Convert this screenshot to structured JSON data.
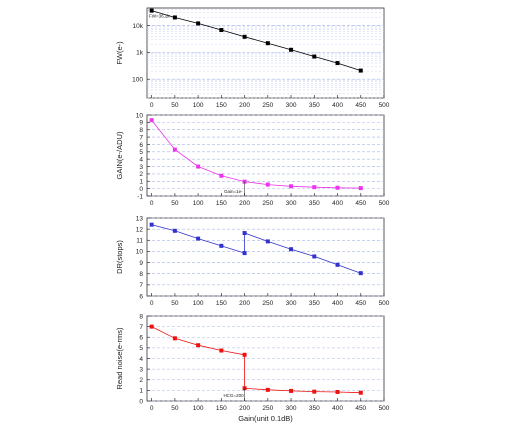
{
  "chart_data": [
    {
      "type": "line",
      "ylabel": "FW(e-)",
      "xlabel": "",
      "x": [
        0,
        50,
        100,
        150,
        200,
        250,
        300,
        350,
        400,
        450
      ],
      "series": [
        {
          "values": [
            36000,
            20000,
            12000,
            6800,
            3800,
            2200,
            1250,
            700,
            400,
            210
          ],
          "color": "#000000"
        }
      ],
      "yscale": "log",
      "ylim": [
        20,
        45000
      ],
      "yticks": [
        100,
        1000,
        10000
      ],
      "ytick_labels": [
        "100",
        "1k",
        "10k"
      ],
      "xlim": [
        -10,
        500
      ],
      "xticks": [
        0,
        50,
        100,
        150,
        200,
        250,
        300,
        350,
        400,
        450,
        500
      ],
      "grid": true,
      "annotations": [
        {
          "text": "FW=36.2k",
          "x": 0,
          "y": 36000
        }
      ]
    },
    {
      "type": "line",
      "ylabel": "GAIN(e-/ADU)",
      "xlabel": "",
      "x": [
        0,
        50,
        100,
        150,
        200,
        250,
        300,
        350,
        400,
        450
      ],
      "series": [
        {
          "values": [
            9.3,
            5.3,
            3.0,
            1.75,
            0.95,
            0.55,
            0.32,
            0.2,
            0.12,
            0.07
          ],
          "color": "#ee33ee"
        }
      ],
      "ylim": [
        -1,
        10
      ],
      "yticks": [
        -1,
        0,
        1,
        2,
        3,
        4,
        5,
        6,
        7,
        8,
        9,
        10
      ],
      "xlim": [
        -10,
        500
      ],
      "xticks": [
        0,
        50,
        100,
        150,
        200,
        250,
        300,
        350,
        400,
        450,
        500
      ],
      "grid": true,
      "annotations": [
        {
          "text": "Gain=1e-",
          "x": 195,
          "y": 0.95
        }
      ]
    },
    {
      "type": "line",
      "ylabel": "DR(stops)",
      "xlabel": "",
      "x": [
        0,
        50,
        100,
        150,
        200,
        200,
        250,
        300,
        350,
        400,
        450
      ],
      "series": [
        {
          "values": [
            12.4,
            11.85,
            11.15,
            10.5,
            9.85,
            11.65,
            10.9,
            10.2,
            9.55,
            8.8,
            8.05
          ],
          "color": "#3333cc"
        }
      ],
      "ylim": [
        6,
        13
      ],
      "yticks": [
        6,
        7,
        8,
        9,
        10,
        11,
        12,
        13
      ],
      "xlim": [
        -10,
        500
      ],
      "xticks": [
        0,
        50,
        100,
        150,
        200,
        250,
        300,
        350,
        400,
        450,
        500
      ],
      "grid": true
    },
    {
      "type": "line",
      "ylabel": "Read noise(e-rms)",
      "xlabel": "Gain(unit 0.1dB)",
      "x": [
        0,
        50,
        100,
        150,
        200,
        200,
        250,
        300,
        350,
        400,
        450
      ],
      "series": [
        {
          "values": [
            7.0,
            5.9,
            5.25,
            4.75,
            4.35,
            1.2,
            1.05,
            0.95,
            0.88,
            0.85,
            0.78
          ],
          "color": "#ee1111"
        }
      ],
      "ylim": [
        0,
        8
      ],
      "yticks": [
        0,
        1,
        2,
        3,
        4,
        5,
        6,
        7,
        8
      ],
      "xlim": [
        -10,
        500
      ],
      "xticks": [
        0,
        50,
        100,
        150,
        200,
        250,
        300,
        350,
        400,
        450,
        500
      ],
      "grid": true,
      "annotations": [
        {
          "text": "HCG=200",
          "x": 200,
          "y": 1.2
        }
      ]
    }
  ]
}
